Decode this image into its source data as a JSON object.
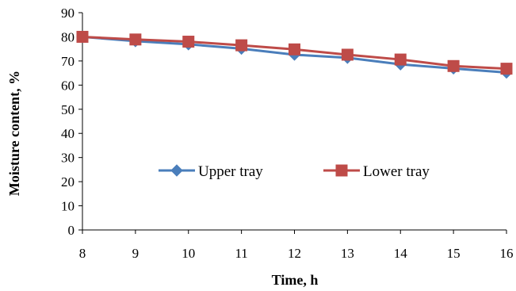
{
  "chart_data": {
    "type": "line",
    "xlabel": "Time, h",
    "ylabel": "Moisture content, %",
    "x": [
      8,
      9,
      10,
      11,
      12,
      13,
      14,
      15,
      16
    ],
    "xlim": [
      8,
      16
    ],
    "ylim": [
      0,
      90
    ],
    "y_ticks": [
      0,
      10,
      20,
      30,
      40,
      50,
      60,
      70,
      80,
      90
    ],
    "grid": false,
    "legend_position": "center",
    "series": [
      {
        "name": "Upper tray",
        "marker": "diamond",
        "color": "#4a7ebb",
        "values": [
          80,
          78.2,
          76.9,
          75.1,
          72.6,
          71.3,
          68.6,
          66.9,
          65.2
        ]
      },
      {
        "name": "Lower tray",
        "marker": "square",
        "color": "#be4b48",
        "values": [
          80,
          78.9,
          78,
          76.5,
          74.8,
          72.6,
          70.6,
          67.9,
          66.8
        ]
      }
    ]
  }
}
